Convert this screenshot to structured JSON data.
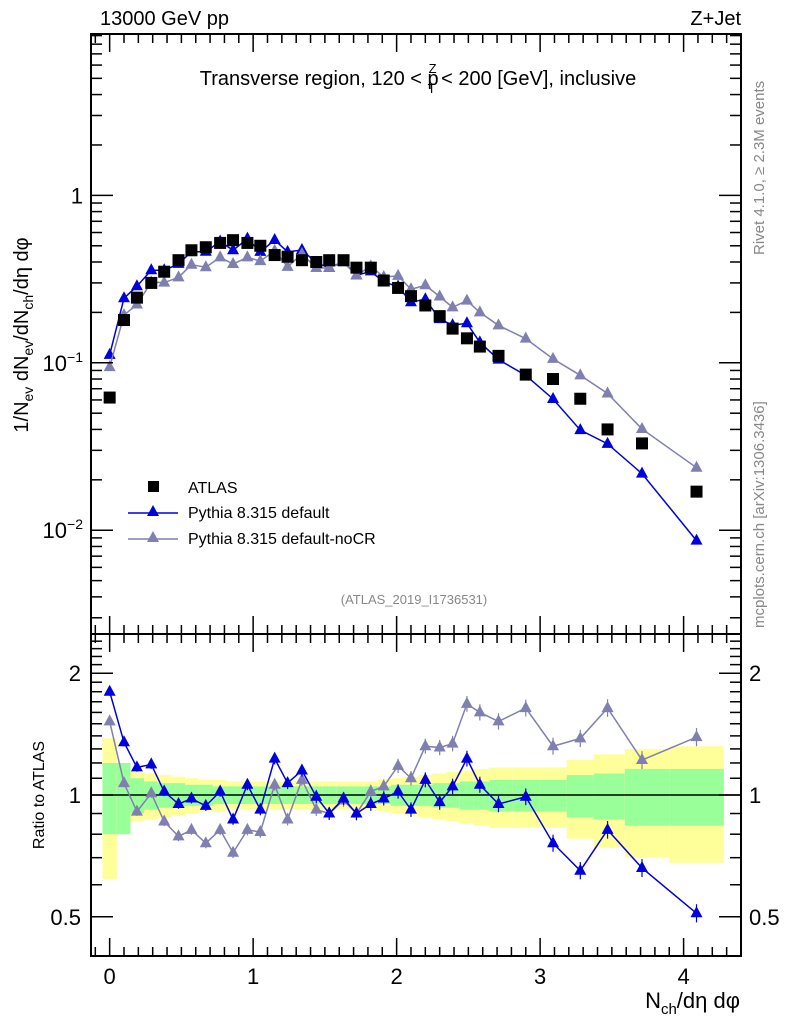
{
  "header": {
    "left": "13000 GeV pp",
    "right": "Z+Jet"
  },
  "side_labels": {
    "rivet": "Rivet 4.1.0, ≥ 2.3M events",
    "mcplots": "mcplots.cern.ch [arXiv:1306.3436]"
  },
  "colors": {
    "atlas": "#000000",
    "default": "#0000dd",
    "nocr": "#7f7fb2",
    "band_inner": "#99ff99",
    "band_outer": "#ffff99"
  },
  "chart_data": [
    {
      "type": "scatter",
      "panel": "main",
      "title": "Transverse region, 120 < p_T^Z < 200 [GeV], inclusive",
      "title_parts": {
        "pre": "Transverse region, 120 < p",
        "sup": "Z",
        "sub": "T",
        "post": " < 200 [GeV], inclusive"
      },
      "ylabel": "1/N_ev dN_ev/dN_ch/dη dφ",
      "ylabel_parts": {
        "a": "1/N",
        "a_sub": "ev",
        "b": " dN",
        "b_sub": "ev",
        "c": "/dN",
        "c_sub": "ch",
        "d": "/dη dφ"
      },
      "yscale": "log",
      "ylim": [
        0.0024,
        9.2
      ],
      "xlim": [
        -0.13,
        4.4
      ],
      "yticks": [
        {
          "v": 0.01,
          "base": "10",
          "exp": "−2"
        },
        {
          "v": 0.1,
          "base": "10",
          "exp": "−1"
        },
        {
          "v": 1,
          "base": "1",
          "exp": ""
        }
      ],
      "annotation": "(ATLAS_2019_I1736531)",
      "legend_position": "bottom-left",
      "x": [
        0.0,
        0.1,
        0.19,
        0.29,
        0.38,
        0.48,
        0.57,
        0.67,
        0.77,
        0.86,
        0.96,
        1.05,
        1.15,
        1.24,
        1.34,
        1.44,
        1.53,
        1.63,
        1.72,
        1.82,
        1.91,
        2.01,
        2.1,
        2.2,
        2.3,
        2.39,
        2.49,
        2.58,
        2.71,
        2.9,
        3.09,
        3.28,
        3.47,
        3.71,
        4.09
      ],
      "series": [
        {
          "name": "ATLAS",
          "marker": "square",
          "values": [
            0.062,
            0.18,
            0.245,
            0.3,
            0.35,
            0.41,
            0.47,
            0.49,
            0.52,
            0.54,
            0.52,
            0.5,
            0.44,
            0.43,
            0.41,
            0.4,
            0.41,
            0.41,
            0.37,
            0.37,
            0.31,
            0.28,
            0.25,
            0.22,
            0.19,
            0.16,
            0.14,
            0.125,
            0.11,
            0.085,
            0.08,
            0.061,
            0.04,
            0.033,
            0.017
          ]
        },
        {
          "name": "Pythia 8.315 default",
          "marker": "triangle",
          "ratio": [
            1.8,
            1.35,
            1.17,
            1.19,
            1.02,
            0.95,
            0.98,
            0.94,
            1.02,
            0.87,
            1.06,
            0.92,
            1.23,
            1.07,
            1.15,
            0.99,
            0.9,
            0.98,
            0.9,
            0.95,
            0.98,
            1.02,
            0.92,
            1.09,
            0.96,
            1.05,
            1.23,
            1.06,
            0.95,
            0.99,
            0.76,
            0.65,
            0.82,
            0.66,
            0.51
          ]
        },
        {
          "name": "Pythia 8.315 default-noCR",
          "marker": "triangle",
          "ratio": [
            1.52,
            1.07,
            0.91,
            1.01,
            0.86,
            0.79,
            0.82,
            0.76,
            0.82,
            0.72,
            0.82,
            0.81,
            1.06,
            0.87,
            1.09,
            0.92,
            0.9,
            0.97,
            0.9,
            1.02,
            1.05,
            1.18,
            1.1,
            1.32,
            1.31,
            1.34,
            1.68,
            1.6,
            1.52,
            1.64,
            1.32,
            1.38,
            1.64,
            1.22,
            1.39
          ]
        }
      ]
    },
    {
      "type": "scatter",
      "panel": "ratio",
      "ylabel": "Ratio to ATLAS",
      "xlabel": "N_ch/dη dφ",
      "xlabel_parts": {
        "a": "N",
        "a_sub": "ch",
        "b": "/dη dφ"
      },
      "yscale": "log",
      "ylim": [
        0.4,
        2.5
      ],
      "yticks": [
        0.5,
        1,
        2
      ],
      "xticks": [
        0,
        1,
        2,
        3,
        4
      ],
      "band_inner": [
        0.2,
        0.2,
        0.1,
        0.08,
        0.07,
        0.07,
        0.06,
        0.06,
        0.05,
        0.05,
        0.05,
        0.05,
        0.05,
        0.05,
        0.05,
        0.05,
        0.05,
        0.05,
        0.05,
        0.05,
        0.05,
        0.06,
        0.06,
        0.06,
        0.07,
        0.07,
        0.08,
        0.08,
        0.09,
        0.09,
        0.09,
        0.12,
        0.13,
        0.16,
        0.16
      ],
      "band_outer": [
        0.38,
        0.15,
        0.14,
        0.13,
        0.12,
        0.11,
        0.1,
        0.09,
        0.09,
        0.08,
        0.08,
        0.08,
        0.08,
        0.08,
        0.08,
        0.08,
        0.08,
        0.08,
        0.08,
        0.08,
        0.09,
        0.1,
        0.11,
        0.12,
        0.13,
        0.14,
        0.15,
        0.16,
        0.17,
        0.17,
        0.17,
        0.22,
        0.26,
        0.3,
        0.32
      ]
    }
  ]
}
